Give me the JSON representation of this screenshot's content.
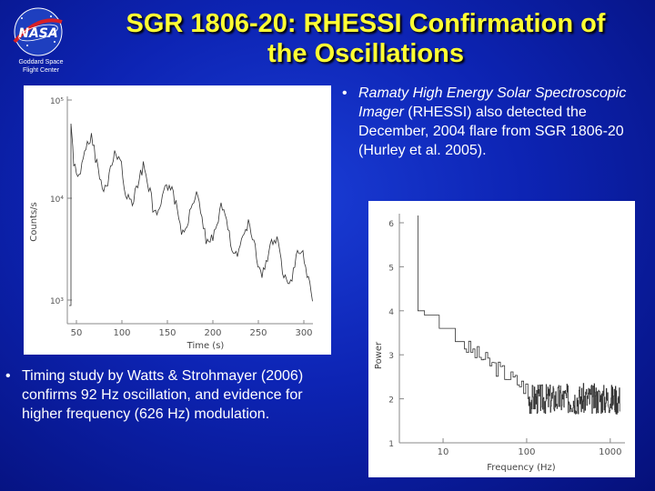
{
  "slide": {
    "title_line1": "SGR 1806-20: RHESSI Confirmation of",
    "title_line2": "the Oscillations",
    "logo": {
      "wordmark": "NASA",
      "caption_line1": "Goddard Space",
      "caption_line2": "Flight Center"
    },
    "bullet_top": {
      "italic_part": "Ramaty High Energy Solar Spectroscopic Imager",
      "rest": " (RHESSI) also detected the December, 2004 flare from SGR 1806-20 (Hurley et al. 2005)."
    },
    "bullet_bottom": "Timing study by Watts & Strohmayer (2006) confirms 92 Hz oscillation, and evidence for higher frequency (626 Hz) modulation.",
    "colors": {
      "title": "#ffff33",
      "background": "#0d24b4",
      "text": "#ffffff"
    }
  },
  "chart_data": [
    {
      "type": "line",
      "ylabel": "Counts/s",
      "xlabel": "Time (s)",
      "y_scale": "log",
      "y_ticks": [
        "10⁵",
        "10⁴",
        "10³"
      ],
      "x_ticks": [
        "50",
        "100",
        "150",
        "200",
        "250",
        "300"
      ],
      "xlim": [
        40,
        310
      ],
      "ylim": [
        1000,
        100000
      ]
    },
    {
      "type": "line",
      "ylabel": "Power",
      "xlabel": "Frequency (Hz)",
      "x_scale": "log",
      "x_ticks": [
        "10",
        "100",
        "1000"
      ],
      "y_ticks": [
        "6",
        "5",
        "4",
        "3",
        "2",
        "1"
      ],
      "xlim": [
        3,
        1500
      ],
      "ylim": [
        1,
        6
      ]
    }
  ]
}
